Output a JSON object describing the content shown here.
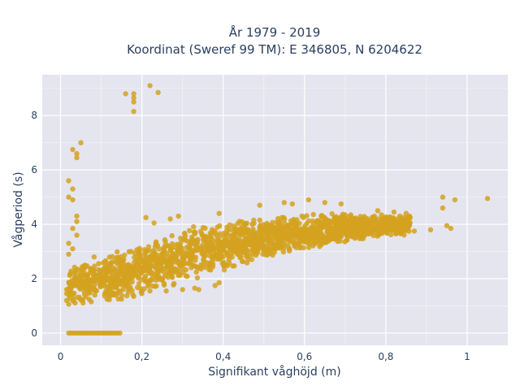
{
  "chart_data": {
    "type": "scatter",
    "title_lines": [
      "År 1979 - 2019",
      "Koordinat (Sweref 99 TM): E 346805, N 6204622"
    ],
    "xlabel": "Signifikant våghöjd (m)",
    "ylabel": "Vågperiod (s)",
    "xlim": [
      -0.045,
      1.1
    ],
    "ylim": [
      -0.45,
      9.5
    ],
    "x_ticks": [
      0,
      0.2,
      0.4,
      0.6,
      0.8,
      1
    ],
    "x_tick_labels": [
      "0",
      "0,2",
      "0,4",
      "0,6",
      "0,8",
      "1"
    ],
    "y_ticks": [
      0,
      2,
      4,
      6,
      8
    ],
    "y_tick_labels": [
      "0",
      "2",
      "4",
      "6",
      "8"
    ],
    "grid": true,
    "marker_color": "#d4a21f",
    "plot_background": "#e5e5f0",
    "points_note": "dense cloud approximated by envelope bands",
    "envelope_bands": [
      {
        "x": [
          0.02,
          0.15
        ],
        "y_low": [
          1.0,
          1.1
        ],
        "y_high": [
          2.6,
          3.1
        ]
      },
      {
        "x": [
          0.15,
          0.3
        ],
        "y_low": [
          1.2,
          1.8
        ],
        "y_high": [
          3.1,
          3.8
        ]
      },
      {
        "x": [
          0.3,
          0.5
        ],
        "y_low": [
          1.8,
          2.7
        ],
        "y_high": [
          3.9,
          4.3
        ]
      },
      {
        "x": [
          0.5,
          0.7
        ],
        "y_low": [
          2.7,
          3.3
        ],
        "y_high": [
          4.3,
          4.5
        ]
      },
      {
        "x": [
          0.7,
          0.86
        ],
        "y_low": [
          3.3,
          3.6
        ],
        "y_high": [
          4.4,
          4.4
        ]
      }
    ],
    "outlier_points": [
      {
        "x": 0.22,
        "y": 9.1
      },
      {
        "x": 0.24,
        "y": 8.85
      },
      {
        "x": 0.16,
        "y": 8.8
      },
      {
        "x": 0.18,
        "y": 8.8
      },
      {
        "x": 0.18,
        "y": 8.65
      },
      {
        "x": 0.18,
        "y": 8.5
      },
      {
        "x": 0.18,
        "y": 8.15
      },
      {
        "x": 0.05,
        "y": 7.0
      },
      {
        "x": 0.03,
        "y": 6.75
      },
      {
        "x": 0.04,
        "y": 6.6
      },
      {
        "x": 0.04,
        "y": 6.45
      },
      {
        "x": 0.02,
        "y": 5.6
      },
      {
        "x": 0.03,
        "y": 5.3
      },
      {
        "x": 0.02,
        "y": 5.0
      },
      {
        "x": 0.03,
        "y": 4.9
      },
      {
        "x": 0.04,
        "y": 4.3
      },
      {
        "x": 0.04,
        "y": 4.1
      },
      {
        "x": 0.03,
        "y": 3.85
      },
      {
        "x": 0.04,
        "y": 3.6
      },
      {
        "x": 0.02,
        "y": 3.3
      },
      {
        "x": 0.03,
        "y": 3.1
      },
      {
        "x": 0.02,
        "y": 2.9
      },
      {
        "x": 0.015,
        "y": 1.6
      },
      {
        "x": 0.015,
        "y": 1.45
      },
      {
        "x": 0.015,
        "y": 1.2
      },
      {
        "x": 0.94,
        "y": 5.0
      },
      {
        "x": 0.97,
        "y": 4.9
      },
      {
        "x": 1.05,
        "y": 4.95
      },
      {
        "x": 0.94,
        "y": 4.6
      },
      {
        "x": 0.95,
        "y": 3.95
      },
      {
        "x": 0.96,
        "y": 3.85
      },
      {
        "x": 0.91,
        "y": 3.8
      },
      {
        "x": 0.87,
        "y": 3.75
      },
      {
        "x": 0.82,
        "y": 4.45
      },
      {
        "x": 0.85,
        "y": 4.4
      },
      {
        "x": 0.78,
        "y": 4.5
      },
      {
        "x": 0.77,
        "y": 3.7
      },
      {
        "x": 0.55,
        "y": 4.8
      },
      {
        "x": 0.57,
        "y": 4.75
      },
      {
        "x": 0.61,
        "y": 4.9
      },
      {
        "x": 0.49,
        "y": 4.7
      },
      {
        "x": 0.65,
        "y": 4.8
      },
      {
        "x": 0.69,
        "y": 4.75
      },
      {
        "x": 0.39,
        "y": 4.4
      },
      {
        "x": 0.29,
        "y": 4.3
      },
      {
        "x": 0.27,
        "y": 4.2
      },
      {
        "x": 0.21,
        "y": 4.25
      },
      {
        "x": 0.23,
        "y": 4.05
      },
      {
        "x": 0.38,
        "y": 1.75
      },
      {
        "x": 0.39,
        "y": 1.85
      },
      {
        "x": 0.34,
        "y": 1.6
      },
      {
        "x": 0.33,
        "y": 1.65
      },
      {
        "x": 0.3,
        "y": 1.6
      },
      {
        "x": 0.26,
        "y": 1.55
      },
      {
        "x": 0.22,
        "y": 1.55
      },
      {
        "x": 0.2,
        "y": 1.45
      },
      {
        "x": 0.18,
        "y": 1.35
      },
      {
        "x": 0.15,
        "y": 1.25
      }
    ],
    "zero_row": {
      "y": 0,
      "x_start": 0.02,
      "x_end": 0.15
    }
  }
}
